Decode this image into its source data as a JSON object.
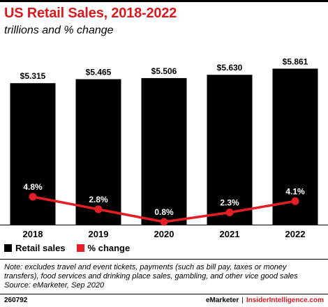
{
  "title": "US Retail Sales, 2018-2022",
  "subtitle": "trillions and % change",
  "chart_data": {
    "type": "bar",
    "categories": [
      "2018",
      "2019",
      "2020",
      "2021",
      "2022"
    ],
    "series": [
      {
        "name": "Retail sales",
        "type": "bar",
        "values": [
          5.315,
          5.465,
          5.506,
          5.63,
          5.861
        ],
        "labels": [
          "$5.315",
          "$5.465",
          "$5.506",
          "$5.630",
          "$5.861"
        ],
        "color": "#000000"
      },
      {
        "name": "% change",
        "type": "line",
        "values": [
          4.8,
          2.8,
          0.8,
          2.3,
          4.1
        ],
        "labels": [
          "4.8%",
          "2.8%",
          "0.8%",
          "2.3%",
          "4.1%"
        ],
        "color": "#e41e26"
      }
    ],
    "grid": false,
    "legend_position": "bottom-left"
  },
  "legend": {
    "bar_label": "Retail sales",
    "line_label": "% change"
  },
  "note": {
    "line1": "Note: excludes travel and event tickets, payments (such as bill pay, taxes or money",
    "line2": "transfers), food services and drinking place sales, gambling, and other vice good sales",
    "line3": "Source: eMarketer, Sep 2020"
  },
  "footer": {
    "id": "260792",
    "brand1": "eMarketer",
    "separator": "|",
    "brand2": "InsiderIntelligence.com"
  }
}
